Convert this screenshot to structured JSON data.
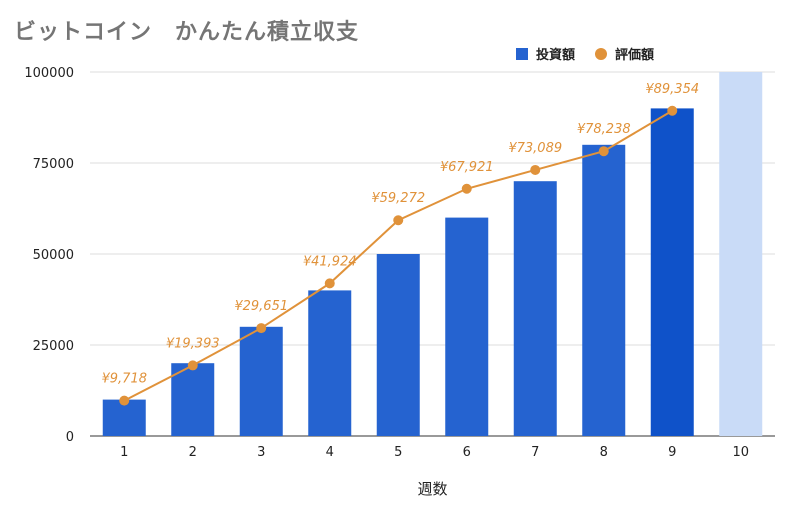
{
  "chart_data": {
    "type": "bar",
    "title": "ビットコイン　かんたん積立収支",
    "xlabel": "週数",
    "ylabel": "",
    "categories": [
      "1",
      "2",
      "3",
      "4",
      "5",
      "6",
      "7",
      "8",
      "9",
      "10"
    ],
    "ylim": [
      0,
      100000
    ],
    "yticks": [
      "0",
      "25000",
      "50000",
      "75000",
      "100000"
    ],
    "grid": true,
    "legend_position": "top-right",
    "series": [
      {
        "name": "投資額",
        "type": "bar",
        "color": "#2563d0",
        "values": [
          10000,
          20000,
          30000,
          40000,
          50000,
          60000,
          70000,
          80000,
          90000,
          100000
        ]
      },
      {
        "name": "評価額",
        "type": "line",
        "color": "#e0923a",
        "values": [
          9718,
          19393,
          29651,
          41924,
          59272,
          67921,
          73089,
          78238,
          89354,
          null
        ],
        "labels": [
          "¥9,718",
          "¥19,393",
          "¥29,651",
          "¥41,924",
          "¥59,272",
          "¥67,921",
          "¥73,089",
          "¥78,238",
          "¥89,354",
          ""
        ]
      }
    ],
    "highlight": {
      "category": "10",
      "color": "#c9dbf7"
    },
    "current_bar_color": "#0f52c9"
  }
}
